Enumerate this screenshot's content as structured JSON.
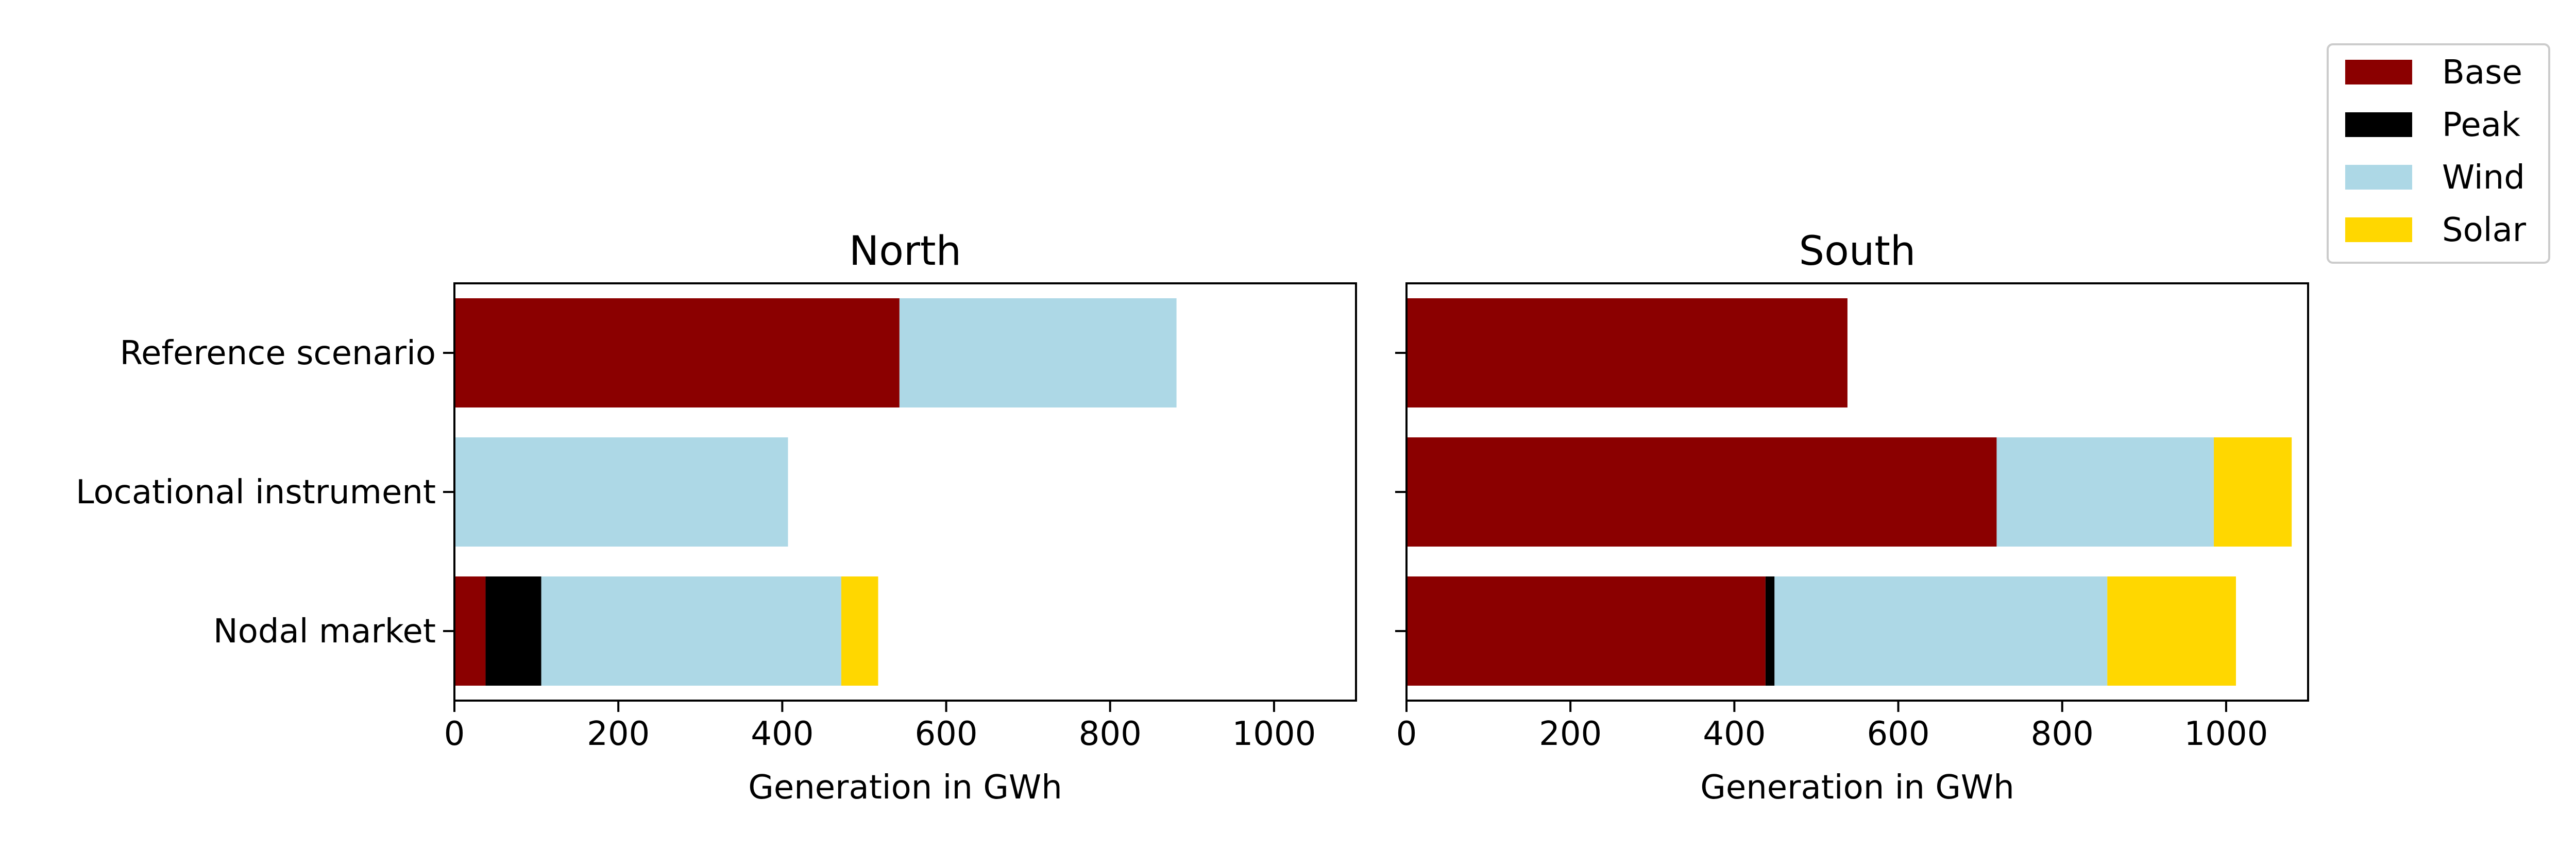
{
  "chart_data": {
    "type": "bar",
    "orientation": "horizontal",
    "stacked": true,
    "categories": [
      "Reference scenario",
      "Locational instrument",
      "Nodal market"
    ],
    "xlabel": "Generation in GWh",
    "xlim": [
      0,
      1100
    ],
    "xticks": [
      0,
      200,
      400,
      600,
      800,
      1000
    ],
    "grid": false,
    "legend_position": "outside top-right",
    "series_meta": [
      {
        "name": "Base",
        "color": "#8b0000"
      },
      {
        "name": "Peak",
        "color": "#000000"
      },
      {
        "name": "Wind",
        "color": "#add8e6"
      },
      {
        "name": "Solar",
        "color": "#ffd700"
      }
    ],
    "panels": [
      {
        "title": "North",
        "series": [
          {
            "name": "Base",
            "values": [
              543,
              0,
              38
            ]
          },
          {
            "name": "Peak",
            "values": [
              0,
              0,
              68
            ]
          },
          {
            "name": "Wind",
            "values": [
              338,
              407,
              366
            ]
          },
          {
            "name": "Solar",
            "values": [
              0,
              0,
              45
            ]
          }
        ]
      },
      {
        "title": "South",
        "series": [
          {
            "name": "Base",
            "values": [
              538,
              720,
              438
            ]
          },
          {
            "name": "Peak",
            "values": [
              0,
              0,
              11
            ]
          },
          {
            "name": "Wind",
            "values": [
              0,
              265,
              406
            ]
          },
          {
            "name": "Solar",
            "values": [
              0,
              95,
              157
            ]
          }
        ]
      }
    ]
  }
}
